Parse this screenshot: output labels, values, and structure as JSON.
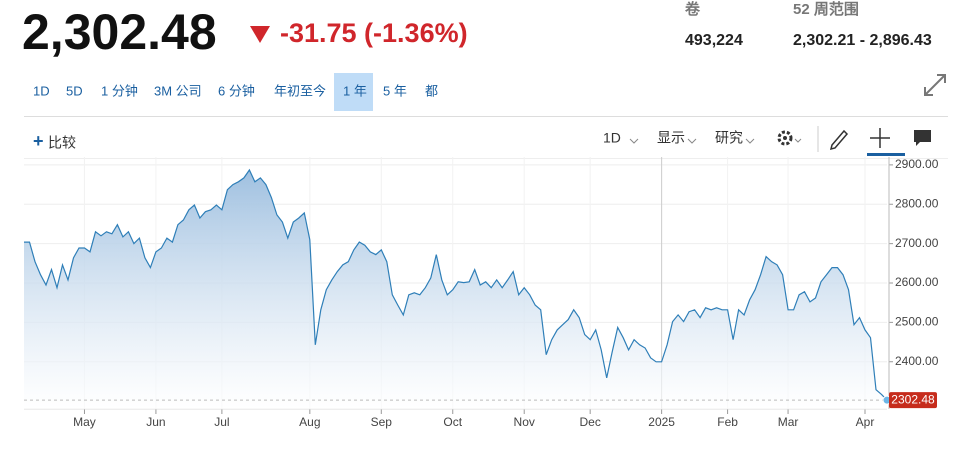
{
  "header": {
    "price": "2,302.48",
    "change": "-31.75 (-1.36%)",
    "volume_label": "卷",
    "volume": "493,224",
    "range_label": "52 周范围",
    "range": "2,302.21 - 2,896.43"
  },
  "range_buttons": [
    "1D",
    "5D",
    "1 分钟",
    "3M 公司",
    "6 分钟",
    "年初至今",
    "1 年",
    "5 年",
    "都"
  ],
  "active_range": 6,
  "toolbar": {
    "compare": "比较",
    "interval": "1D",
    "display": "显示",
    "research": "研究"
  },
  "chart_data": {
    "type": "area",
    "color": "#2f7fb8",
    "values": [
      2704,
      2704,
      2654,
      2621,
      2595,
      2634,
      2588,
      2646,
      2608,
      2664,
      2689,
      2689,
      2679,
      2730,
      2720,
      2730,
      2725,
      2748,
      2717,
      2730,
      2700,
      2714,
      2664,
      2639,
      2679,
      2689,
      2714,
      2704,
      2748,
      2760,
      2786,
      2798,
      2765,
      2781,
      2786,
      2798,
      2786,
      2837,
      2850,
      2857,
      2867,
      2887,
      2857,
      2867,
      2850,
      2817,
      2773,
      2755,
      2714,
      2755,
      2765,
      2778,
      2710,
      2443,
      2532,
      2583,
      2608,
      2629,
      2646,
      2654,
      2684,
      2704,
      2696,
      2679,
      2672,
      2684,
      2654,
      2570,
      2544,
      2519,
      2570,
      2575,
      2570,
      2588,
      2613,
      2672,
      2608,
      2570,
      2583,
      2603,
      2601,
      2603,
      2634,
      2595,
      2603,
      2588,
      2608,
      2588,
      2608,
      2629,
      2570,
      2588,
      2570,
      2544,
      2532,
      2418,
      2456,
      2481,
      2494,
      2507,
      2532,
      2512,
      2469,
      2456,
      2481,
      2430,
      2359,
      2425,
      2487,
      2461,
      2430,
      2456,
      2443,
      2435,
      2410,
      2400,
      2400,
      2443,
      2502,
      2519,
      2502,
      2527,
      2532,
      2512,
      2537,
      2532,
      2537,
      2532,
      2532,
      2456,
      2532,
      2519,
      2557,
      2583,
      2621,
      2667,
      2654,
      2646,
      2621,
      2532,
      2532,
      2570,
      2578,
      2552,
      2562,
      2603,
      2621,
      2639,
      2639,
      2621,
      2583,
      2494,
      2512,
      2481,
      2461,
      2329,
      2317,
      2302.48
    ],
    "xlim": [
      0,
      157
    ],
    "xticks": [
      {
        "value": 11,
        "label": "May"
      },
      {
        "value": 24,
        "label": "Jun"
      },
      {
        "value": 36,
        "label": "Jul"
      },
      {
        "value": 52,
        "label": "Aug"
      },
      {
        "value": 65,
        "label": "Sep"
      },
      {
        "value": 78,
        "label": "Oct"
      },
      {
        "value": 91,
        "label": "Nov"
      },
      {
        "value": 103,
        "label": "Dec"
      },
      {
        "value": 116,
        "label": "2025"
      },
      {
        "value": 128,
        "label": "Feb"
      },
      {
        "value": 139,
        "label": "Mar"
      },
      {
        "value": 153,
        "label": "Apr"
      }
    ],
    "ylim": [
      2280,
      2920
    ],
    "yticks": [
      {
        "value": 2400,
        "label": "2400.00"
      },
      {
        "value": 2500,
        "label": "2500.00"
      },
      {
        "value": 2600,
        "label": "2600.00"
      },
      {
        "value": 2700,
        "label": "2700.00"
      },
      {
        "value": 2800,
        "label": "2800.00"
      },
      {
        "value": 2900,
        "label": "2900.00"
      }
    ],
    "grid": true
  }
}
